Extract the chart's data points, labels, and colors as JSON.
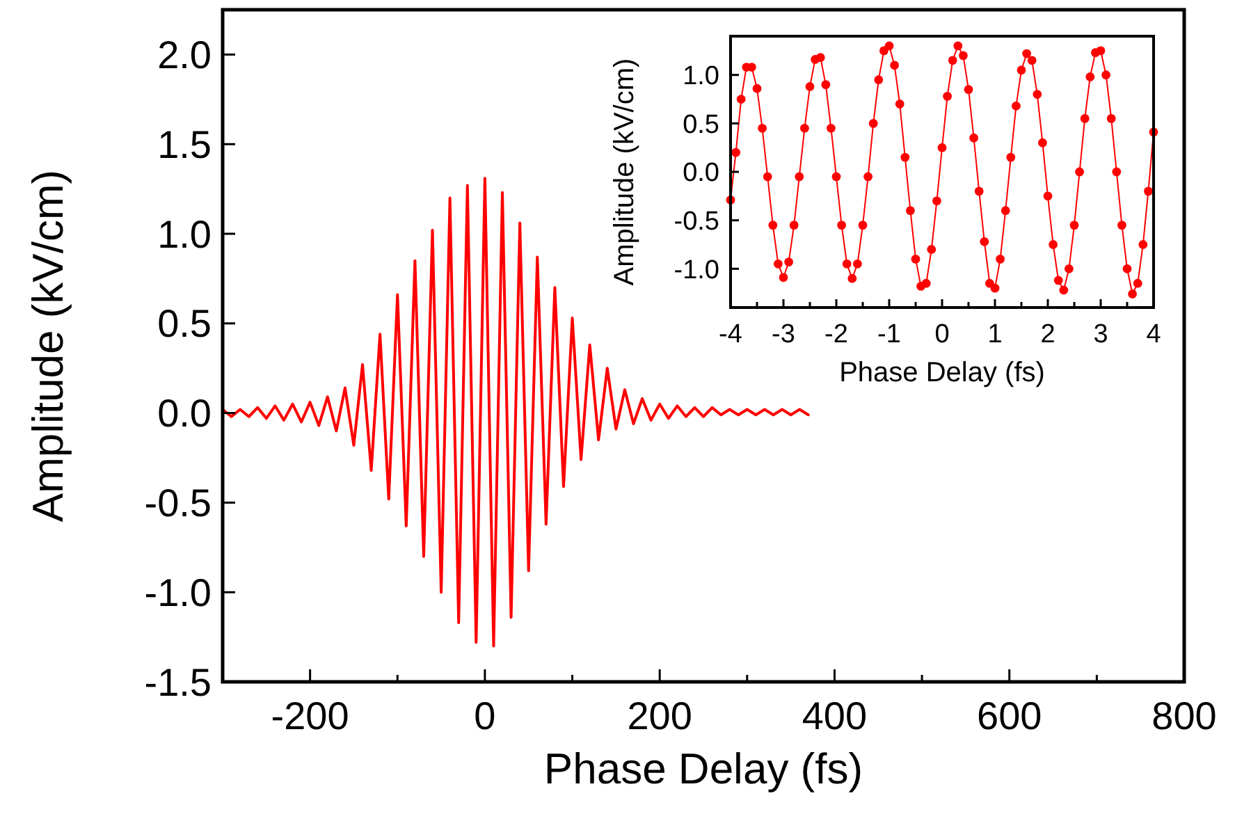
{
  "chart_data": [
    {
      "type": "line",
      "xlabel": "Phase Delay (fs)",
      "ylabel": "Amplitude (kV/cm)",
      "xlim": [
        -300,
        800
      ],
      "ylim": [
        -1.5,
        2.25
      ],
      "xticks": [
        -200,
        {
          "value": -100,
          "label": null
        },
        0,
        {
          "value": 100,
          "label": null
        },
        200,
        {
          "value": 300,
          "label": null
        },
        400,
        {
          "value": 500,
          "label": null
        },
        600,
        {
          "value": 700,
          "label": null
        },
        800
      ],
      "yticks": [
        -1.5,
        {
          "value": -1,
          "label": "-1.0"
        },
        -0.5,
        {
          "value": 0,
          "label": "0.0"
        },
        0.5,
        {
          "value": 1,
          "label": "1.0"
        },
        1.5,
        {
          "value": 2,
          "label": "2.0"
        }
      ],
      "marker": "none",
      "grid": false,
      "series": [
        {
          "color": "#ff0000",
          "x": [
            -300,
            -290,
            -280,
            -270,
            -260,
            -250,
            -240,
            -230,
            -220,
            -210,
            -200,
            -190,
            -180,
            -170,
            -160,
            -150,
            -140,
            -130,
            -120,
            -110,
            -100,
            -90,
            -80,
            -70,
            -60,
            -50,
            -40,
            -30,
            -20,
            -10,
            0,
            10,
            20,
            30,
            40,
            50,
            60,
            70,
            80,
            90,
            100,
            110,
            120,
            130,
            140,
            150,
            160,
            170,
            180,
            190,
            200,
            210,
            220,
            230,
            240,
            250,
            260,
            270,
            280,
            290,
            300,
            310,
            320,
            330,
            340,
            350,
            360,
            370
          ],
          "values": [
            0.02,
            -0.02,
            0.02,
            -0.02,
            0.03,
            -0.03,
            0.04,
            -0.04,
            0.05,
            -0.05,
            0.06,
            -0.07,
            0.09,
            -0.1,
            0.14,
            -0.18,
            0.27,
            -0.32,
            0.44,
            -0.48,
            0.66,
            -0.63,
            0.85,
            -0.8,
            1.02,
            -1.0,
            1.2,
            -1.17,
            1.27,
            -1.28,
            1.31,
            -1.3,
            1.23,
            -1.14,
            1.06,
            -0.88,
            0.87,
            -0.62,
            0.7,
            -0.41,
            0.53,
            -0.26,
            0.38,
            -0.15,
            0.25,
            -0.09,
            0.13,
            -0.06,
            0.08,
            -0.04,
            0.05,
            -0.03,
            0.04,
            -0.02,
            0.03,
            -0.02,
            0.03,
            -0.01,
            0.02,
            -0.01,
            0.02,
            -0.01,
            0.02,
            -0.01,
            0.02,
            -0.01,
            0.02,
            -0.01
          ]
        }
      ]
    },
    {
      "type": "line",
      "xlabel": "Phase Delay (fs)",
      "ylabel": "Amplitude (kV/cm)",
      "xlim": [
        -4,
        4
      ],
      "ylim": [
        -1.4,
        1.4
      ],
      "xticks": [
        -4,
        {
          "value": -3.5,
          "label": null
        },
        -3,
        {
          "value": -2.5,
          "label": null
        },
        -2,
        {
          "value": -1.5,
          "label": null
        },
        -1,
        {
          "value": -0.5,
          "label": null
        },
        0,
        {
          "value": 0.5,
          "label": null
        },
        1,
        {
          "value": 1.5,
          "label": null
        },
        2,
        {
          "value": 2.5,
          "label": null
        },
        3,
        {
          "value": 3.5,
          "label": null
        },
        4
      ],
      "yticks": [
        {
          "value": -1,
          "label": "-1.0"
        },
        -0.5,
        {
          "value": 0,
          "label": "0.0"
        },
        0.5,
        {
          "value": 1,
          "label": "1.0"
        }
      ],
      "marker": "circle",
      "grid": false,
      "series": [
        {
          "color": "#ff0000",
          "x": [
            -4.0,
            -3.9,
            -3.8,
            -3.7,
            -3.6,
            -3.5,
            -3.4,
            -3.3,
            -3.2,
            -3.1,
            -3.0,
            -2.9,
            -2.8,
            -2.7,
            -2.6,
            -2.5,
            -2.4,
            -2.3,
            -2.2,
            -2.1,
            -2.0,
            -1.9,
            -1.8,
            -1.7,
            -1.6,
            -1.5,
            -1.4,
            -1.3,
            -1.2,
            -1.1,
            -1.0,
            -0.9,
            -0.8,
            -0.7,
            -0.6,
            -0.5,
            -0.4,
            -0.3,
            -0.2,
            -0.1,
            0.0,
            0.1,
            0.2,
            0.3,
            0.4,
            0.5,
            0.6,
            0.7,
            0.8,
            0.9,
            1.0,
            1.1,
            1.2,
            1.3,
            1.4,
            1.5,
            1.6,
            1.7,
            1.8,
            1.9,
            2.0,
            2.1,
            2.2,
            2.3,
            2.4,
            2.5,
            2.6,
            2.7,
            2.8,
            2.9,
            3.0,
            3.1,
            3.2,
            3.3,
            3.4,
            3.5,
            3.6,
            3.7,
            3.8,
            3.9,
            4.0
          ],
          "values": [
            -0.29,
            0.2,
            0.75,
            1.08,
            1.08,
            0.86,
            0.45,
            -0.05,
            -0.55,
            -0.95,
            -1.09,
            -0.93,
            -0.55,
            -0.05,
            0.45,
            0.88,
            1.16,
            1.18,
            0.9,
            0.45,
            -0.05,
            -0.55,
            -0.95,
            -1.1,
            -0.95,
            -0.55,
            -0.05,
            0.5,
            0.95,
            1.25,
            1.3,
            1.1,
            0.7,
            0.15,
            -0.4,
            -0.9,
            -1.18,
            -1.15,
            -0.8,
            -0.3,
            0.25,
            0.78,
            1.15,
            1.3,
            1.2,
            0.85,
            0.35,
            -0.2,
            -0.72,
            -1.15,
            -1.2,
            -0.9,
            -0.4,
            0.15,
            0.68,
            1.05,
            1.22,
            1.15,
            0.8,
            0.3,
            -0.25,
            -0.75,
            -1.12,
            -1.22,
            -1.0,
            -0.55,
            0.0,
            0.55,
            0.98,
            1.23,
            1.25,
            1.0,
            0.55,
            0.0,
            -0.55,
            -1.0,
            -1.26,
            -1.15,
            -0.75,
            -0.2,
            0.41
          ]
        }
      ]
    }
  ]
}
